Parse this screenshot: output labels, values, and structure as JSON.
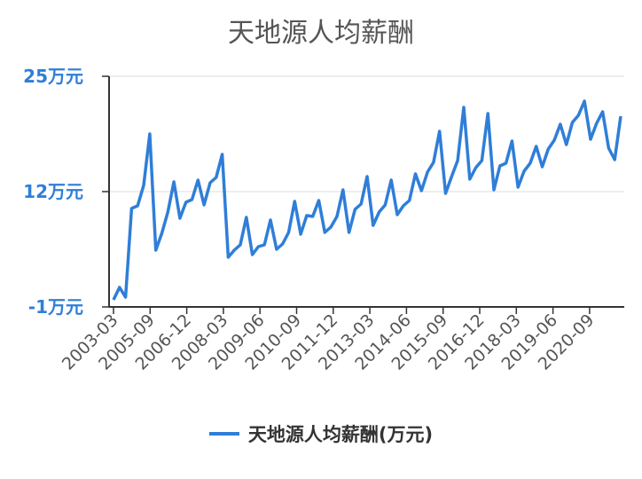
{
  "chart_data": {
    "type": "line",
    "title": "天地源人均薪酬",
    "xlabel": "",
    "ylabel": "",
    "y_tick_labels": [
      "25万元",
      "12万元",
      "-1万元"
    ],
    "y_tick_values": [
      25,
      12,
      -1
    ],
    "ylim": [
      -1,
      25
    ],
    "x_tick_labels": [
      "2003-03",
      "2005-09",
      "2006-12",
      "2008-03",
      "2009-06",
      "2010-09",
      "2011-12",
      "2013-03",
      "2014-06",
      "2015-09",
      "2016-12",
      "2018-03",
      "2019-06",
      "2020-09"
    ],
    "grid": true,
    "legend": "bottom",
    "color": "#2f7ed8",
    "series": [
      {
        "name": "天地源人均薪酬(万元)",
        "values": [
          -0.2,
          1.2,
          0.1,
          10.1,
          10.4,
          12.7,
          18.5,
          5.4,
          7.3,
          9.7,
          13.1,
          9.0,
          10.8,
          11.1,
          13.3,
          10.5,
          13.0,
          13.6,
          16.2,
          4.6,
          5.4,
          6.0,
          9.1,
          4.9,
          5.8,
          6.0,
          8.8,
          5.5,
          6.1,
          7.4,
          10.9,
          7.2,
          9.3,
          9.2,
          11.0,
          7.4,
          8.0,
          9.2,
          12.2,
          7.4,
          10.0,
          10.6,
          13.7,
          8.2,
          9.7,
          10.5,
          13.3,
          9.4,
          10.4,
          11.0,
          14.0,
          12.1,
          14.2,
          15.3,
          18.8,
          11.8,
          13.7,
          15.5,
          21.5,
          13.4,
          14.7,
          15.5,
          20.8,
          12.2,
          14.9,
          15.2,
          17.7,
          12.5,
          14.3,
          15.2,
          17.1,
          14.8,
          16.8,
          17.8,
          19.6,
          17.3,
          19.8,
          20.6,
          22.2,
          17.9,
          19.7,
          21.0,
          16.9,
          15.6,
          20.5
        ]
      }
    ]
  }
}
